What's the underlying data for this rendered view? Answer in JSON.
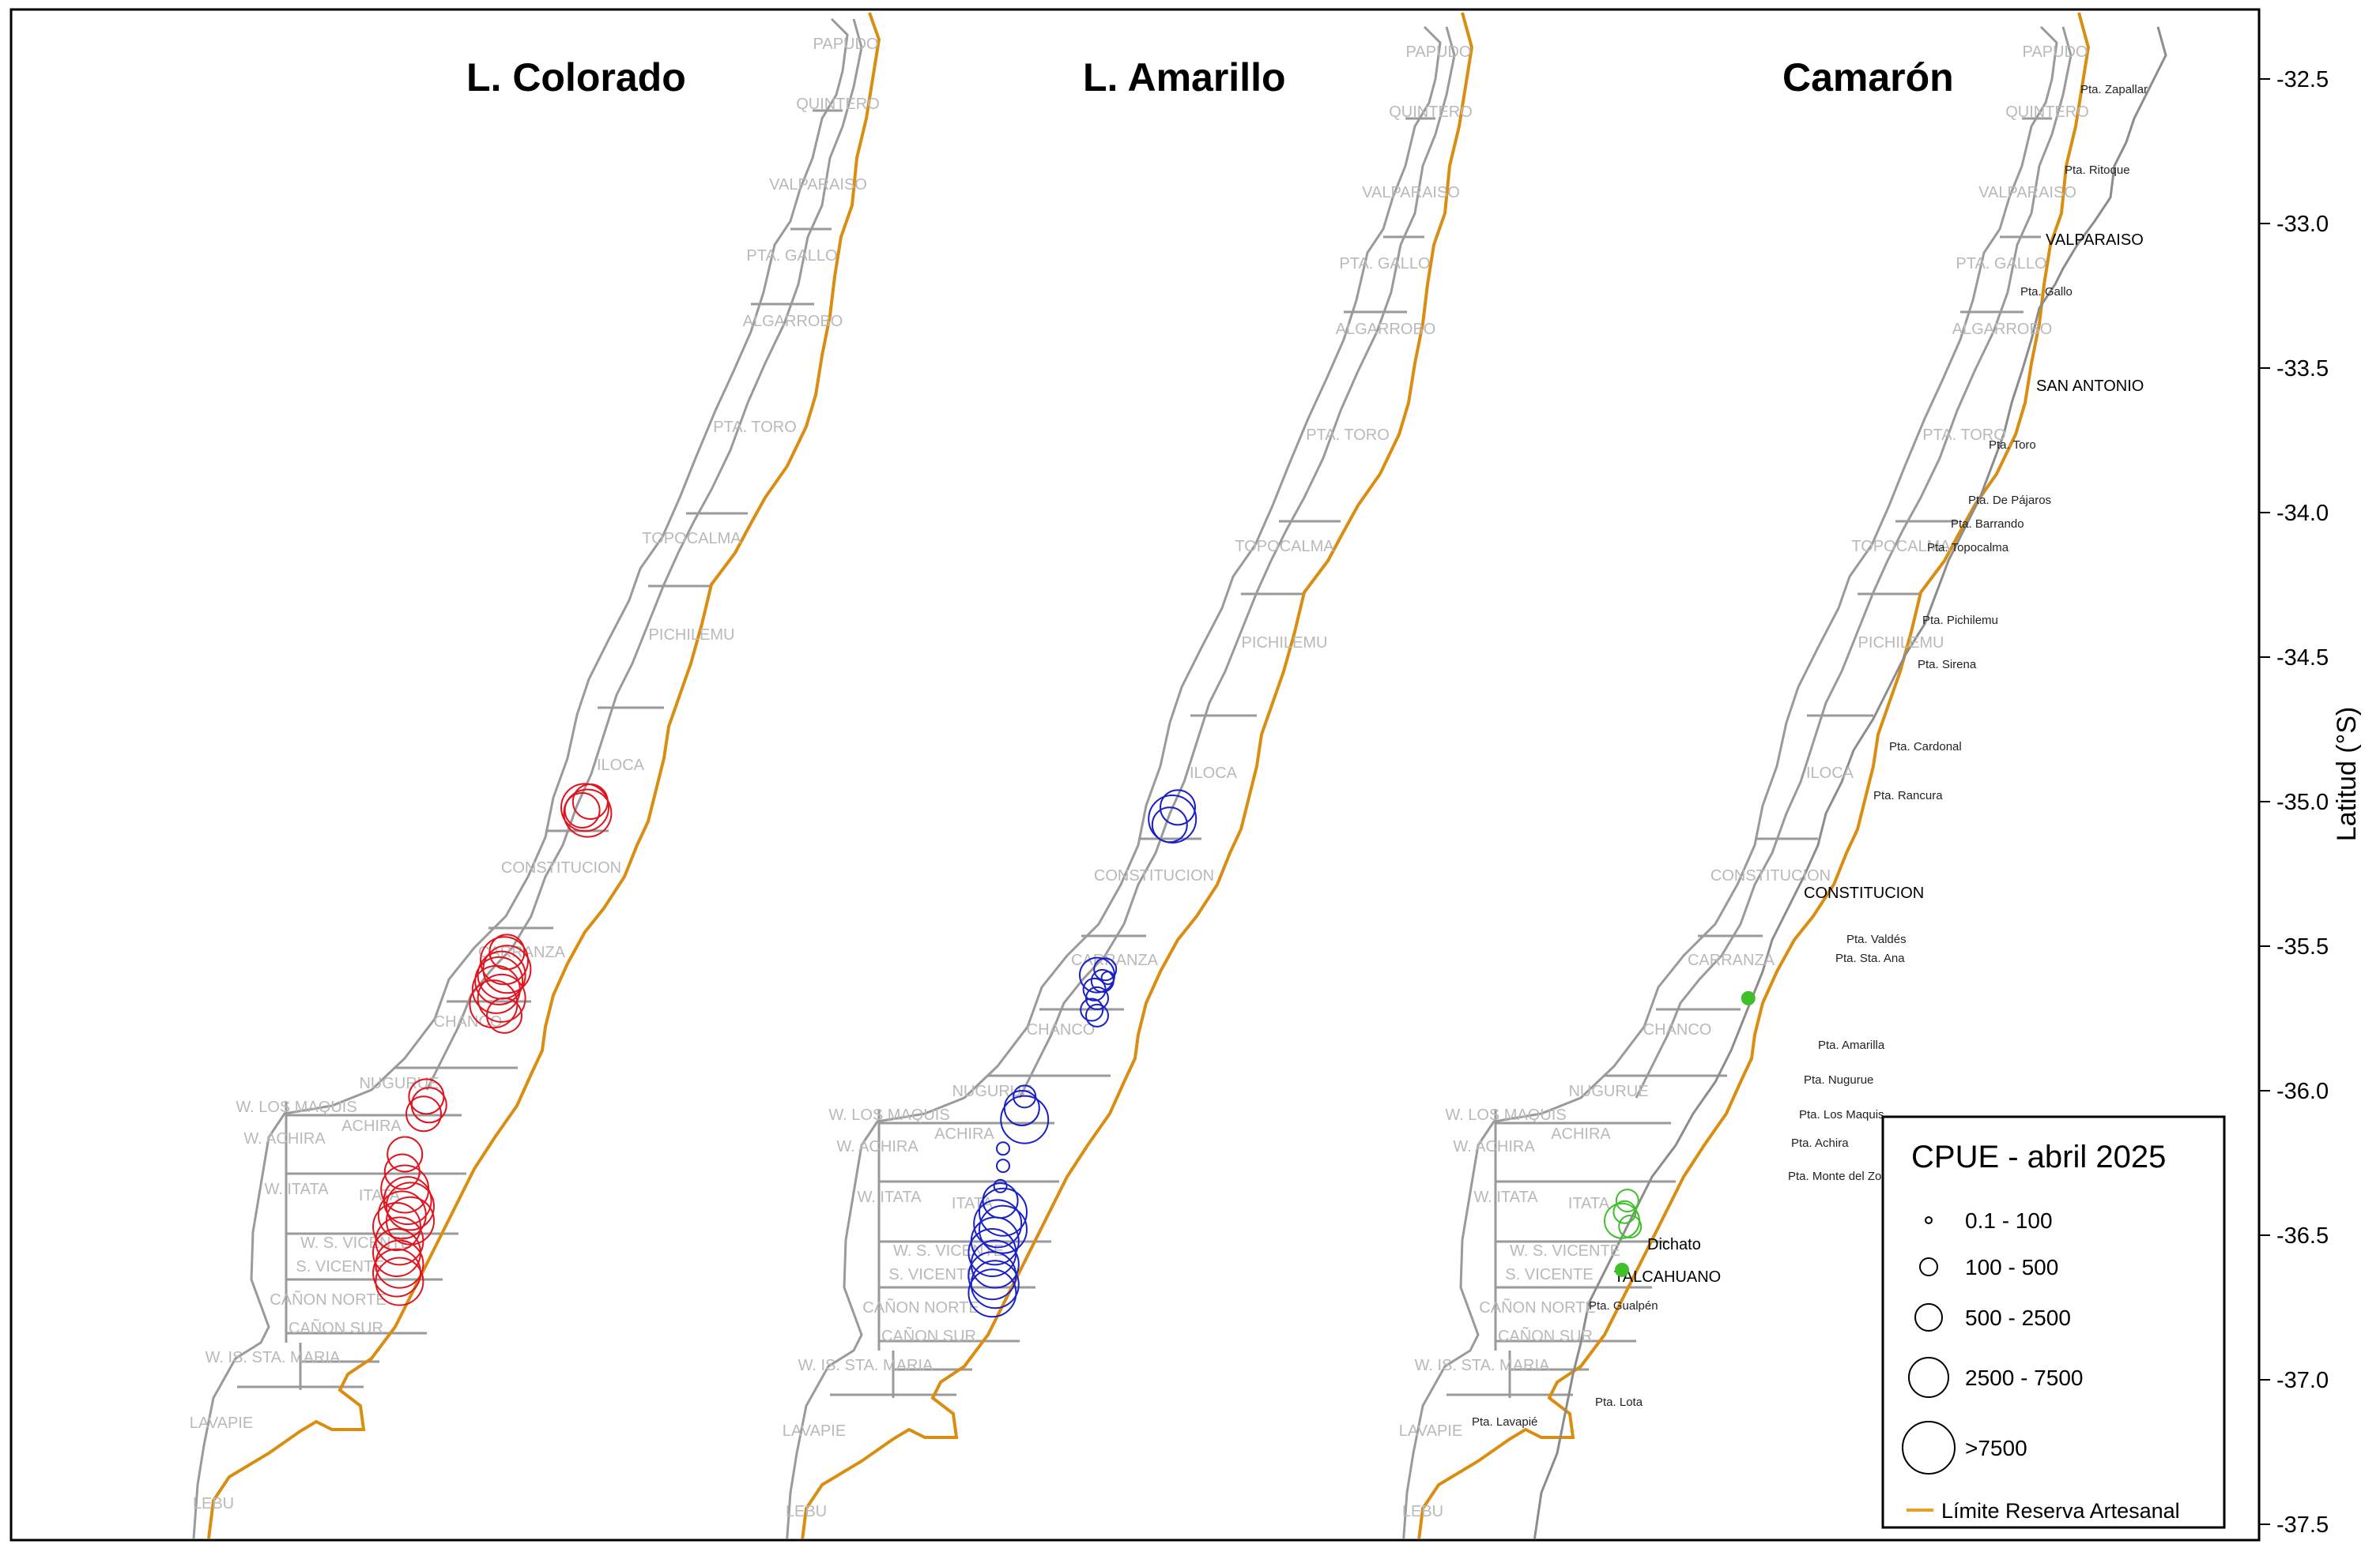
{
  "panels": [
    {
      "title": "L. Colorado",
      "species_color": "#e0141e"
    },
    {
      "title": "L. Amarillo",
      "species_color": "#1a20c8"
    },
    {
      "title": "Camarón",
      "species_color": "#3fbf2a"
    }
  ],
  "zone_labels": [
    "PAPUDO",
    "QUINTERO",
    "VALPARAISO",
    "PTA. GALLO",
    "ALGARROBO",
    "PTA. TORO",
    "TOPOCALMA",
    "PICHILEMU",
    "ILOCA",
    "CONSTITUCION",
    "CARRANZA",
    "CHANCO",
    "NUGURUE",
    "W. LOS MAQUIS",
    "ACHIRA",
    "W. ACHIRA",
    "W. ITATA",
    "ITATA",
    "W. S. VICENTE",
    "S. VICENTE",
    "CAÑON NORTE",
    "CAÑON SUR",
    "W. IS. STA. MARIA",
    "LAVAPIE",
    "LEBU"
  ],
  "point_labels": [
    "Pta. Zapallar",
    "Pta. Ritoque",
    "Pta. Gallo",
    "Pta. Toro",
    "Pta. De Pájaros",
    "Pta. Barrando",
    "Pta. Topocalma",
    "Pta. Pichilemu",
    "Pta. Sirena",
    "Pta. Cardonal",
    "Pta. Rancura",
    "Pta. Valdés",
    "Pta. Sta. Ana",
    "Pta. Amarilla",
    "Pta. Nugurue",
    "Pta. Los Maquis",
    "Pta. Achira",
    "Pta. Monte del Zorro",
    "Pta. Gualpén",
    "Pta. Lota",
    "Pta. Lavapié"
  ],
  "city_labels": [
    "VALPARAISO",
    "SAN ANTONIO",
    "CONSTITUCION",
    "Dichato",
    "TALCAHUANO"
  ],
  "latitude_axis": {
    "title": "Latitud (°S)",
    "ticks": [
      "-32.5",
      "-33.0",
      "-33.5",
      "-34.0",
      "-34.5",
      "-35.0",
      "-35.5",
      "-36.0",
      "-36.5",
      "-37.0",
      "-37.5"
    ],
    "values": [
      -32.5,
      -33.0,
      -33.5,
      -34.0,
      -34.5,
      -35.0,
      -35.5,
      -36.0,
      -36.5,
      -37.0,
      -37.5
    ]
  },
  "legend": {
    "title": "CPUE - abril 2025",
    "classes": [
      "0.1 - 100",
      "100 - 500",
      "500 - 2500",
      "2500 - 7500",
      ">7500"
    ],
    "boundary_label": "Límite Reserva Artesanal",
    "boundary_color": "#e8a020"
  },
  "colors": {
    "coast": "#8c8c8c",
    "zone_lines": "#9a9a9a",
    "reserve_limit": "#d98e12"
  },
  "cpue_observations": {
    "L. Colorado": [
      {
        "lat": -35.02,
        "lon": -72.43,
        "class": 4
      },
      {
        "lat": -35.04,
        "lon": -72.42,
        "class": 4
      },
      {
        "lat": -35.0,
        "lon": -72.41,
        "class": 3
      },
      {
        "lat": -35.03,
        "lon": -72.44,
        "class": 3
      },
      {
        "lat": -35.55,
        "lon": -72.73,
        "class": 4
      },
      {
        "lat": -35.6,
        "lon": -72.74,
        "class": 4
      },
      {
        "lat": -35.65,
        "lon": -72.76,
        "class": 4
      },
      {
        "lat": -35.7,
        "lon": -72.77,
        "class": 4
      },
      {
        "lat": -35.58,
        "lon": -72.72,
        "class": 4
      },
      {
        "lat": -35.62,
        "lon": -72.75,
        "class": 4
      },
      {
        "lat": -35.74,
        "lon": -72.73,
        "class": 3
      },
      {
        "lat": -35.52,
        "lon": -72.72,
        "class": 3
      },
      {
        "lat": -35.68,
        "lon": -72.74,
        "class": 4
      },
      {
        "lat": -36.02,
        "lon": -73.02,
        "class": 3
      },
      {
        "lat": -36.05,
        "lon": -73.01,
        "class": 3
      },
      {
        "lat": -36.08,
        "lon": -73.03,
        "class": 3
      },
      {
        "lat": -36.22,
        "lon": -73.1,
        "class": 3
      },
      {
        "lat": -36.28,
        "lon": -73.11,
        "class": 3
      },
      {
        "lat": -36.34,
        "lon": -73.1,
        "class": 4
      },
      {
        "lat": -36.38,
        "lon": -73.09,
        "class": 4
      },
      {
        "lat": -36.43,
        "lon": -73.11,
        "class": 4
      },
      {
        "lat": -36.47,
        "lon": -73.13,
        "class": 4
      },
      {
        "lat": -36.52,
        "lon": -73.12,
        "class": 4
      },
      {
        "lat": -36.56,
        "lon": -73.13,
        "class": 4
      },
      {
        "lat": -36.6,
        "lon": -73.12,
        "class": 4
      },
      {
        "lat": -36.63,
        "lon": -73.13,
        "class": 4
      },
      {
        "lat": -36.66,
        "lon": -73.12,
        "class": 4
      },
      {
        "lat": -36.45,
        "lon": -73.08,
        "class": 4
      },
      {
        "lat": -36.4,
        "lon": -73.08,
        "class": 4
      }
    ],
    "L. Amarillo": [
      {
        "lat": -35.02,
        "lon": -72.43,
        "class": 3
      },
      {
        "lat": -35.06,
        "lon": -72.45,
        "class": 4
      },
      {
        "lat": -35.08,
        "lon": -72.46,
        "class": 3
      },
      {
        "lat": -35.6,
        "lon": -72.73,
        "class": 3
      },
      {
        "lat": -35.62,
        "lon": -72.71,
        "class": 2
      },
      {
        "lat": -35.58,
        "lon": -72.7,
        "class": 2
      },
      {
        "lat": -35.65,
        "lon": -72.74,
        "class": 2
      },
      {
        "lat": -35.68,
        "lon": -72.73,
        "class": 2
      },
      {
        "lat": -35.72,
        "lon": -72.75,
        "class": 2
      },
      {
        "lat": -35.74,
        "lon": -72.73,
        "class": 2
      },
      {
        "lat": -35.61,
        "lon": -72.69,
        "class": 1
      },
      {
        "lat": -36.02,
        "lon": -73.0,
        "class": 2
      },
      {
        "lat": -36.06,
        "lon": -73.01,
        "class": 3
      },
      {
        "lat": -36.1,
        "lon": -73.0,
        "class": 4
      },
      {
        "lat": -36.2,
        "lon": -73.08,
        "class": 1
      },
      {
        "lat": -36.26,
        "lon": -73.08,
        "class": 1
      },
      {
        "lat": -36.33,
        "lon": -73.09,
        "class": 1
      },
      {
        "lat": -36.38,
        "lon": -73.09,
        "class": 3
      },
      {
        "lat": -36.42,
        "lon": -73.08,
        "class": 4
      },
      {
        "lat": -36.46,
        "lon": -73.1,
        "class": 4
      },
      {
        "lat": -36.52,
        "lon": -73.11,
        "class": 4
      },
      {
        "lat": -36.56,
        "lon": -73.12,
        "class": 4
      },
      {
        "lat": -36.6,
        "lon": -73.11,
        "class": 4
      },
      {
        "lat": -36.64,
        "lon": -73.12,
        "class": 4
      },
      {
        "lat": -36.67,
        "lon": -73.11,
        "class": 4
      },
      {
        "lat": -36.7,
        "lon": -73.12,
        "class": 4
      },
      {
        "lat": -36.48,
        "lon": -73.08,
        "class": 4
      }
    ],
    "Camarón": [
      {
        "lat": -35.68,
        "lon": -72.66,
        "class": 1
      },
      {
        "lat": -36.38,
        "lon": -73.11,
        "class": 2
      },
      {
        "lat": -36.42,
        "lon": -73.12,
        "class": 2
      },
      {
        "lat": -36.45,
        "lon": -73.13,
        "class": 3
      },
      {
        "lat": -36.47,
        "lon": -73.1,
        "class": 2
      },
      {
        "lat": -36.62,
        "lon": -73.13,
        "class": 1
      }
    ]
  }
}
